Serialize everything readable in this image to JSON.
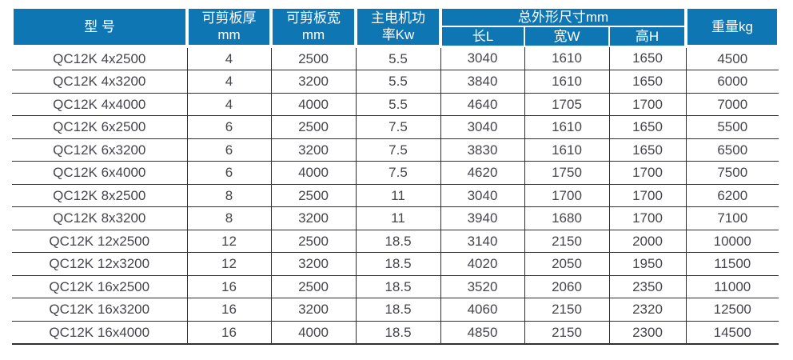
{
  "colors": {
    "background": "#ffffff",
    "header_bg": "#0f76b4",
    "header_text": "#ffffff",
    "body_text": "#45454b",
    "grid_line": "#2f2f2f"
  },
  "table": {
    "title_semantic": "QC12K shearing machine specification table",
    "column_keys": [
      "model",
      "cut-thickness-mm",
      "cut-width-mm",
      "motor-power-kw",
      "length-l",
      "width-w",
      "height-h",
      "weight-kg"
    ],
    "header": {
      "model": "型 号",
      "cut_thickness_line1": "可剪板厚",
      "cut_thickness_line2": "mm",
      "cut_width_line1": "可剪板宽",
      "cut_width_line2": "mm",
      "motor_power_line1": "主电机功",
      "motor_power_line2": "率Kw",
      "overall_dimensions": "总外形尺寸mm",
      "length": "长L",
      "width": "宽W",
      "height": "高H",
      "weight": "重量kg"
    },
    "rows": [
      [
        "QC12K 4x2500",
        "4",
        "2500",
        "5.5",
        "3040",
        "1610",
        "1650",
        "4500"
      ],
      [
        "QC12K 4x3200",
        "4",
        "3200",
        "5.5",
        "3840",
        "1610",
        "1650",
        "6000"
      ],
      [
        "QC12K 4x4000",
        "4",
        "4000",
        "5.5",
        "4640",
        "1705",
        "1700",
        "7000"
      ],
      [
        "QC12K 6x2500",
        "6",
        "2500",
        "7.5",
        "3040",
        "1610",
        "1650",
        "5500"
      ],
      [
        "QC12K 6x3200",
        "6",
        "3200",
        "7.5",
        "3830",
        "1610",
        "1650",
        "6500"
      ],
      [
        "QC12K 6x4000",
        "6",
        "4000",
        "7.5",
        "4620",
        "1750",
        "1700",
        "7500"
      ],
      [
        "QC12K 8x2500",
        "8",
        "2500",
        "11",
        "3040",
        "1700",
        "1700",
        "6200"
      ],
      [
        "QC12K 8x3200",
        "8",
        "3200",
        "11",
        "3940",
        "1680",
        "1700",
        "7100"
      ],
      [
        "QC12K 12x2500",
        "12",
        "2500",
        "18.5",
        "3140",
        "2150",
        "2000",
        "10000"
      ],
      [
        "QC12K 12x3200",
        "12",
        "3200",
        "18.5",
        "4020",
        "2050",
        "1950",
        "11500"
      ],
      [
        "QC12K 16x2500",
        "16",
        "2500",
        "18.5",
        "3520",
        "2060",
        "2350",
        "11000"
      ],
      [
        "QC12K 16x3200",
        "16",
        "3200",
        "18.5",
        "4060",
        "2150",
        "2320",
        "12500"
      ],
      [
        "QC12K 16x4000",
        "16",
        "4000",
        "18.5",
        "4850",
        "2150",
        "2300",
        "14500"
      ]
    ]
  }
}
